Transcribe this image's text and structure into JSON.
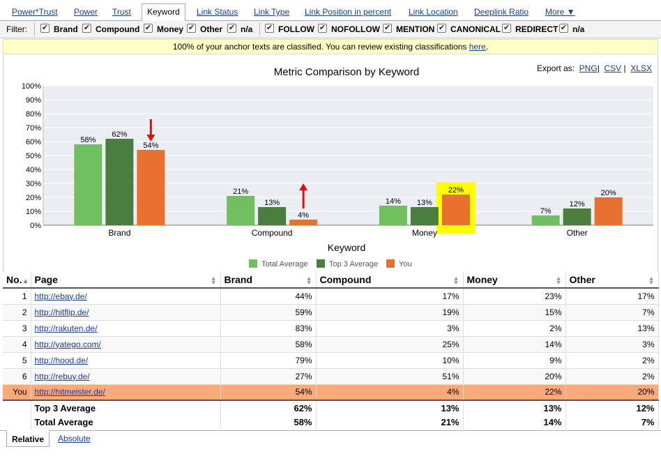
{
  "tabs": [
    {
      "label": "Power*Trust"
    },
    {
      "label": "Power"
    },
    {
      "label": "Trust"
    },
    {
      "label": "Keyword",
      "active": true
    },
    {
      "label": "Link Status"
    },
    {
      "label": "Link Type"
    },
    {
      "label": "Link Position in percent"
    },
    {
      "label": "Link Location"
    },
    {
      "label": "Deeplink Ratio"
    },
    {
      "label": "More ▼"
    }
  ],
  "filter": {
    "label": "Filter:",
    "group1": [
      {
        "label": "Brand",
        "checked": true
      },
      {
        "label": "Compound",
        "checked": true
      },
      {
        "label": "Money",
        "checked": true
      },
      {
        "label": "Other",
        "checked": true
      },
      {
        "label": "n/a",
        "checked": true
      }
    ],
    "group2": [
      {
        "label": "FOLLOW",
        "checked": true
      },
      {
        "label": "NOFOLLOW",
        "checked": true
      },
      {
        "label": "MENTION",
        "checked": true
      },
      {
        "label": "CANONICAL",
        "checked": true
      },
      {
        "label": "REDIRECT",
        "checked": true
      },
      {
        "label": "n/a",
        "checked": true
      }
    ]
  },
  "notice": {
    "text": "100% of your anchor texts are classified. You can review existing classifications ",
    "link": "here",
    "suffix": "."
  },
  "export": {
    "label": "Export as:",
    "png": "PNG",
    "csv": "CSV",
    "xlsx": "XLSX",
    "sep": "|"
  },
  "colors": {
    "total_average": "#72bf5f",
    "top3_average": "#4b7d3f",
    "you": "#e8712f",
    "highlight": "#ffff00",
    "arrow": "#e01010",
    "link": "#1a3b9c",
    "you_row": "#f9a97a"
  },
  "chart_data": {
    "type": "bar",
    "title": "Metric Comparison by Keyword",
    "xlabel": "Keyword",
    "ylabel": "",
    "categories": [
      "Brand",
      "Compound",
      "Money",
      "Other"
    ],
    "series": [
      {
        "name": "Total Average",
        "values": [
          58,
          21,
          14,
          7
        ],
        "labels": [
          "58%",
          "21%",
          "14%",
          "7%"
        ]
      },
      {
        "name": "Top 3 Average",
        "values": [
          62,
          13,
          13,
          12
        ],
        "labels": [
          "62%",
          "13%",
          "13%",
          "12%"
        ]
      },
      {
        "name": "You",
        "values": [
          54,
          4,
          22,
          20
        ],
        "labels": [
          "54%",
          "4%",
          "22%",
          "20%"
        ]
      }
    ],
    "ylim": [
      0,
      100
    ],
    "yticks": [
      "0%",
      "10%",
      "20%",
      "30%",
      "40%",
      "50%",
      "60%",
      "70%",
      "80%",
      "90%",
      "100%"
    ],
    "grid": true,
    "legend": "bottom",
    "annotations": [
      {
        "kind": "arrow-down",
        "category": "Brand",
        "series": "You"
      },
      {
        "kind": "arrow-up",
        "category": "Compound",
        "series": "You"
      },
      {
        "kind": "highlight-box",
        "category": "Money",
        "series": "You"
      }
    ]
  },
  "table": {
    "headers": [
      "No.",
      "Page",
      "Brand",
      "Compound",
      "Money",
      "Other"
    ],
    "rows": [
      {
        "no": "1",
        "page": "http://ebay.de/",
        "brand": "44%",
        "compound": "17%",
        "money": "23%",
        "other": "17%"
      },
      {
        "no": "2",
        "page": "http://hitflip.de/",
        "brand": "59%",
        "compound": "19%",
        "money": "15%",
        "other": "7%"
      },
      {
        "no": "3",
        "page": "http://rakuten.de/",
        "brand": "83%",
        "compound": "3%",
        "money": "2%",
        "other": "13%"
      },
      {
        "no": "4",
        "page": "http://yatego.com/",
        "brand": "58%",
        "compound": "25%",
        "money": "14%",
        "other": "3%"
      },
      {
        "no": "5",
        "page": "http://hood.de/",
        "brand": "79%",
        "compound": "10%",
        "money": "9%",
        "other": "2%"
      },
      {
        "no": "6",
        "page": "http://rebuy.de/",
        "brand": "27%",
        "compound": "51%",
        "money": "20%",
        "other": "2%"
      },
      {
        "no": "You",
        "page": "http://hitmeister.de/",
        "brand": "54%",
        "compound": "4%",
        "money": "22%",
        "other": "20%"
      }
    ],
    "aggregates": [
      {
        "label": "Top 3 Average",
        "brand": "62%",
        "compound": "13%",
        "money": "13%",
        "other": "12%"
      },
      {
        "label": "Total Average",
        "brand": "58%",
        "compound": "21%",
        "money": "14%",
        "other": "7%"
      }
    ]
  },
  "bottom_tabs": {
    "relative": "Relative",
    "absolute": "Absolute"
  }
}
